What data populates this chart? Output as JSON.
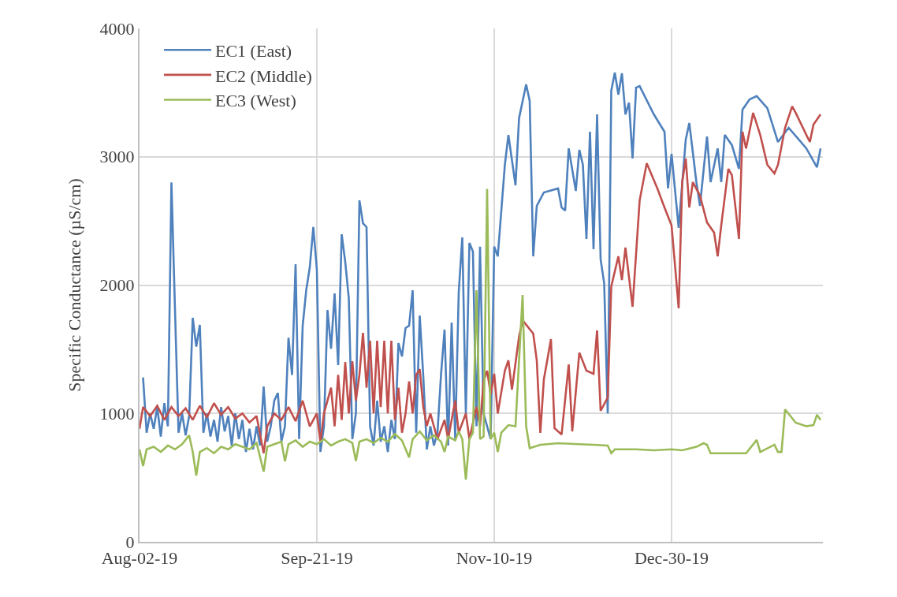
{
  "chart_data": {
    "type": "line",
    "ylabel": "Specific Conductance (µS/cm)",
    "xlim": [
      "2019-08-02",
      "2020-02-10T16:00"
    ],
    "xticks": [
      {
        "value": "2019-08-02",
        "label": "Aug-02-19"
      },
      {
        "value": "2019-09-21",
        "label": "Sep-21-19"
      },
      {
        "value": "2019-11-10",
        "label": "Nov-10-19"
      },
      {
        "value": "2019-12-30",
        "label": "Dec-30-19"
      }
    ],
    "ylim": [
      0,
      4000
    ],
    "yticks": [
      0,
      1000,
      2000,
      3000,
      4000
    ],
    "grid": true,
    "legend": "top left",
    "series": [
      {
        "name": "EC1 (East)",
        "color": "#4f81bd",
        "x": [
          "2019-08-03",
          "2019-08-04",
          "2019-08-05",
          "2019-08-06",
          "2019-08-07",
          "2019-08-08",
          "2019-08-09",
          "2019-08-10",
          "2019-08-11",
          "2019-08-12",
          "2019-08-13",
          "2019-08-14",
          "2019-08-15",
          "2019-08-16",
          "2019-08-17",
          "2019-08-18",
          "2019-08-19",
          "2019-08-20",
          "2019-08-21",
          "2019-08-22",
          "2019-08-23",
          "2019-08-24",
          "2019-08-25",
          "2019-08-26",
          "2019-08-27",
          "2019-08-28",
          "2019-08-29",
          "2019-08-30",
          "2019-08-31",
          "2019-09-01",
          "2019-09-02",
          "2019-09-03",
          "2019-09-04",
          "2019-09-05",
          "2019-09-06",
          "2019-09-07",
          "2019-09-08",
          "2019-09-09",
          "2019-09-10",
          "2019-09-11",
          "2019-09-12",
          "2019-09-13",
          "2019-09-14",
          "2019-09-15",
          "2019-09-16",
          "2019-09-17",
          "2019-09-18",
          "2019-09-19",
          "2019-09-20",
          "2019-09-21",
          "2019-09-22",
          "2019-09-23",
          "2019-09-24",
          "2019-09-25",
          "2019-09-26",
          "2019-09-27",
          "2019-09-28",
          "2019-09-29",
          "2019-09-30",
          "2019-10-01",
          "2019-10-02",
          "2019-10-03",
          "2019-10-04",
          "2019-10-05",
          "2019-10-06",
          "2019-10-07",
          "2019-10-08",
          "2019-10-09",
          "2019-10-10",
          "2019-10-11",
          "2019-10-12",
          "2019-10-13",
          "2019-10-14",
          "2019-10-15",
          "2019-10-16",
          "2019-10-17",
          "2019-10-18",
          "2019-10-19",
          "2019-10-20",
          "2019-10-21",
          "2019-10-22",
          "2019-10-23",
          "2019-10-24",
          "2019-10-25",
          "2019-10-26",
          "2019-10-27",
          "2019-10-28",
          "2019-10-29",
          "2019-10-30",
          "2019-10-31",
          "2019-11-01",
          "2019-11-02",
          "2019-11-03",
          "2019-11-04",
          "2019-11-05",
          "2019-11-06",
          "2019-11-07",
          "2019-11-09",
          "2019-11-10",
          "2019-11-11",
          "2019-11-13",
          "2019-11-14",
          "2019-11-16",
          "2019-11-17",
          "2019-11-19",
          "2019-11-20",
          "2019-11-21",
          "2019-11-22",
          "2019-11-24",
          "2019-11-28",
          "2019-11-29",
          "2019-11-30",
          "2019-12-01",
          "2019-12-03",
          "2019-12-04",
          "2019-12-05",
          "2019-12-06",
          "2019-12-07",
          "2019-12-08",
          "2019-12-09",
          "2019-12-10",
          "2019-12-11",
          "2019-12-12",
          "2019-12-13",
          "2019-12-14",
          "2019-12-15",
          "2019-12-16",
          "2019-12-17",
          "2019-12-18",
          "2019-12-19",
          "2019-12-20",
          "2019-12-21",
          "2019-12-25",
          "2019-12-28",
          "2019-12-29",
          "2019-12-30",
          "2020-01-01",
          "2020-01-03",
          "2020-01-04",
          "2020-01-06",
          "2020-01-07",
          "2020-01-09",
          "2020-01-10",
          "2020-01-12",
          "2020-01-13",
          "2020-01-14",
          "2020-01-16",
          "2020-01-18",
          "2020-01-19",
          "2020-01-21",
          "2020-01-23",
          "2020-01-26",
          "2020-01-29",
          "2020-02-01",
          "2020-02-06",
          "2020-02-09",
          "2020-02-10"
        ],
        "values": [
          1280,
          850,
          1000,
          880,
          1050,
          820,
          1080,
          900,
          2800,
          1810,
          850,
          1000,
          830,
          980,
          1745,
          1520,
          1690,
          850,
          1000,
          820,
          950,
          780,
          1050,
          860,
          980,
          750,
          1000,
          800,
          950,
          700,
          880,
          720,
          900,
          750,
          1210,
          780,
          900,
          1100,
          1160,
          780,
          900,
          1590,
          1300,
          2163,
          800,
          1683,
          1960,
          2138,
          2452,
          2120,
          700,
          900,
          1806,
          1505,
          1935,
          1376,
          2396,
          2181,
          1898,
          800,
          1000,
          2660,
          2482,
          2452,
          900,
          750,
          1100,
          780,
          900,
          700,
          950,
          800,
          1548,
          1444,
          1665,
          1683,
          1960,
          850,
          1763,
          1290,
          720,
          900,
          750,
          850,
          1300,
          1653,
          750,
          1708,
          800,
          1948,
          2372,
          1000,
          2329,
          2261,
          900,
          2300,
          1000,
          800,
          2300,
          2224,
          2937,
          3170,
          2777,
          3300,
          3564,
          3435,
          2224,
          2617,
          2722,
          2753,
          2605,
          2580,
          3065,
          2734,
          3054,
          2937,
          2360,
          3195,
          2280,
          3330,
          2200,
          2015,
          1000,
          3515,
          3656,
          3484,
          3650,
          3330,
          3422,
          2986,
          3539,
          3551,
          3330,
          3195,
          2753,
          3023,
          2446,
          3134,
          3263,
          2802,
          2617,
          3158,
          2802,
          3065,
          2802,
          3170,
          3091,
          2906,
          3367,
          3447,
          3472,
          3379,
          3115,
          3226,
          3065,
          2918,
          3065
        ]
      },
      {
        "name": "EC2 (Middle)",
        "color": "#c0504d",
        "x": [
          "2019-08-02",
          "2019-08-03",
          "2019-08-05",
          "2019-08-07",
          "2019-08-09",
          "2019-08-11",
          "2019-08-13",
          "2019-08-15",
          "2019-08-17",
          "2019-08-19",
          "2019-08-21",
          "2019-08-23",
          "2019-08-25",
          "2019-08-27",
          "2019-08-29",
          "2019-08-31",
          "2019-09-02",
          "2019-09-04",
          "2019-09-06",
          "2019-09-07",
          "2019-09-09",
          "2019-09-11",
          "2019-09-13",
          "2019-09-15",
          "2019-09-17",
          "2019-09-19",
          "2019-09-21",
          "2019-09-22",
          "2019-09-23",
          "2019-09-25",
          "2019-09-26",
          "2019-09-27",
          "2019-09-28",
          "2019-09-29",
          "2019-09-30",
          "2019-10-01",
          "2019-10-02",
          "2019-10-03",
          "2019-10-04",
          "2019-10-05",
          "2019-10-06",
          "2019-10-07",
          "2019-10-08",
          "2019-10-09",
          "2019-10-10",
          "2019-10-11",
          "2019-10-12",
          "2019-10-13",
          "2019-10-14",
          "2019-10-15",
          "2019-10-16",
          "2019-10-17",
          "2019-10-18",
          "2019-10-19",
          "2019-10-20",
          "2019-10-21",
          "2019-10-22",
          "2019-10-23",
          "2019-10-25",
          "2019-10-27",
          "2019-10-28",
          "2019-10-30",
          "2019-10-31",
          "2019-11-02",
          "2019-11-03",
          "2019-11-05",
          "2019-11-06",
          "2019-11-07",
          "2019-11-08",
          "2019-11-09",
          "2019-11-10",
          "2019-11-11",
          "2019-11-13",
          "2019-11-14",
          "2019-11-15",
          "2019-11-17",
          "2019-11-18",
          "2019-11-21",
          "2019-11-22",
          "2019-11-23",
          "2019-11-24",
          "2019-11-26",
          "2019-11-27",
          "2019-11-29",
          "2019-12-01",
          "2019-12-02",
          "2019-12-04",
          "2019-12-06",
          "2019-12-08",
          "2019-12-09",
          "2019-12-10",
          "2019-12-12",
          "2019-12-13",
          "2019-12-15",
          "2019-12-16",
          "2019-12-17",
          "2019-12-19",
          "2019-12-21",
          "2019-12-23",
          "2019-12-26",
          "2019-12-28",
          "2019-12-30",
          "2019-12-31",
          "2020-01-01",
          "2020-01-02",
          "2020-01-03",
          "2020-01-04",
          "2020-01-05",
          "2020-01-07",
          "2020-01-09",
          "2020-01-11",
          "2020-01-12",
          "2020-01-13",
          "2020-01-15",
          "2020-01-16",
          "2020-01-18",
          "2020-01-19",
          "2020-01-20",
          "2020-01-22",
          "2020-01-24",
          "2020-01-26",
          "2020-01-28",
          "2020-01-29",
          "2020-01-31",
          "2020-02-02",
          "2020-02-03",
          "2020-02-06",
          "2020-02-07",
          "2020-02-08",
          "2020-02-10"
        ],
        "values": [
          880,
          1050,
          980,
          1060,
          950,
          1050,
          980,
          1040,
          950,
          1060,
          970,
          1080,
          990,
          1050,
          960,
          1000,
          930,
          980,
          690,
          900,
          1000,
          950,
          1050,
          940,
          1100,
          900,
          1000,
          780,
          1000,
          1200,
          900,
          1300,
          950,
          1400,
          1000,
          1407,
          1100,
          1300,
          1628,
          1200,
          1567,
          1000,
          1567,
          1050,
          1567,
          1000,
          1567,
          950,
          1200,
          850,
          1000,
          1250,
          1000,
          1300,
          1345,
          1050,
          903,
          1000,
          800,
          950,
          800,
          1100,
          850,
          1000,
          800,
          1050,
          900,
          1253,
          1333,
          1149,
          1309,
          1000,
          1333,
          1413,
          1186,
          1597,
          1726,
          1622,
          1413,
          848,
          1266,
          1579,
          885,
          836,
          1382,
          860,
          1474,
          1333,
          1309,
          1647,
          1020,
          1124,
          1990,
          2224,
          2040,
          2292,
          1831,
          2660,
          2949,
          2753,
          2605,
          2464,
          2144,
          1819,
          2802,
          2986,
          2605,
          2802,
          2697,
          2488,
          2409,
          2224,
          2464,
          2906,
          2857,
          2360,
          3195,
          3065,
          3342,
          3170,
          2937,
          2869,
          2937,
          3226,
          3392,
          3342,
          3170,
          3115,
          3250,
          3330
        ]
      },
      {
        "name": "EC3 (West)",
        "color": "#9bbb59",
        "x": [
          "2019-08-02",
          "2019-08-03",
          "2019-08-04",
          "2019-08-06",
          "2019-08-08",
          "2019-08-10",
          "2019-08-12",
          "2019-08-14",
          "2019-08-16",
          "2019-08-17",
          "2019-08-18",
          "2019-08-19",
          "2019-08-21",
          "2019-08-23",
          "2019-08-25",
          "2019-08-27",
          "2019-08-29",
          "2019-08-31",
          "2019-09-02",
          "2019-09-04",
          "2019-09-06",
          "2019-09-07",
          "2019-09-09",
          "2019-09-11",
          "2019-09-12",
          "2019-09-13",
          "2019-09-15",
          "2019-09-17",
          "2019-09-19",
          "2019-09-21",
          "2019-09-23",
          "2019-09-25",
          "2019-09-27",
          "2019-09-29",
          "2019-10-01",
          "2019-10-02",
          "2019-10-03",
          "2019-10-05",
          "2019-10-07",
          "2019-10-09",
          "2019-10-11",
          "2019-10-13",
          "2019-10-15",
          "2019-10-17",
          "2019-10-18",
          "2019-10-20",
          "2019-10-22",
          "2019-10-24",
          "2019-10-26",
          "2019-10-27",
          "2019-10-28",
          "2019-10-30",
          "2019-10-31",
          "2019-11-01",
          "2019-11-02",
          "2019-11-03",
          "2019-11-04",
          "2019-11-05",
          "2019-11-06",
          "2019-11-07",
          "2019-11-08",
          "2019-11-09",
          "2019-11-10",
          "2019-11-11",
          "2019-11-12",
          "2019-11-14",
          "2019-11-16",
          "2019-11-18",
          "2019-11-19",
          "2019-11-20",
          "2019-11-23",
          "2019-11-28",
          "2019-12-04",
          "2019-12-08",
          "2019-12-12",
          "2019-12-13",
          "2019-12-14",
          "2019-12-20",
          "2019-12-25",
          "2019-12-30",
          "2020-01-02",
          "2020-01-06",
          "2020-01-08",
          "2020-01-09",
          "2020-01-10",
          "2020-01-15",
          "2020-01-20",
          "2020-01-23",
          "2020-01-24",
          "2020-01-28",
          "2020-01-29",
          "2020-01-30",
          "2020-01-31",
          "2020-02-03",
          "2020-02-06",
          "2020-02-08",
          "2020-02-09",
          "2020-02-10"
        ],
        "values": [
          720,
          590,
          720,
          740,
          700,
          750,
          720,
          760,
          830,
          700,
          516,
          700,
          730,
          690,
          740,
          720,
          760,
          740,
          720,
          770,
          547,
          740,
          760,
          780,
          627,
          760,
          790,
          740,
          780,
          760,
          800,
          750,
          780,
          800,
          770,
          630,
          780,
          800,
          770,
          810,
          780,
          840,
          790,
          657,
          800,
          860,
          790,
          830,
          780,
          700,
          820,
          790,
          860,
          800,
          485,
          800,
          850,
          1960,
          800,
          820,
          2750,
          800,
          850,
          700,
          850,
          909,
          900,
          1923,
          900,
          730,
          756,
          768,
          760,
          756,
          750,
          690,
          720,
          720,
          713,
          720,
          713,
          740,
          768,
          756,
          690,
          690,
          690,
          793,
          700,
          756,
          700,
          700,
          1032,
          928,
          900,
          909,
          989,
          950
        ]
      }
    ]
  }
}
